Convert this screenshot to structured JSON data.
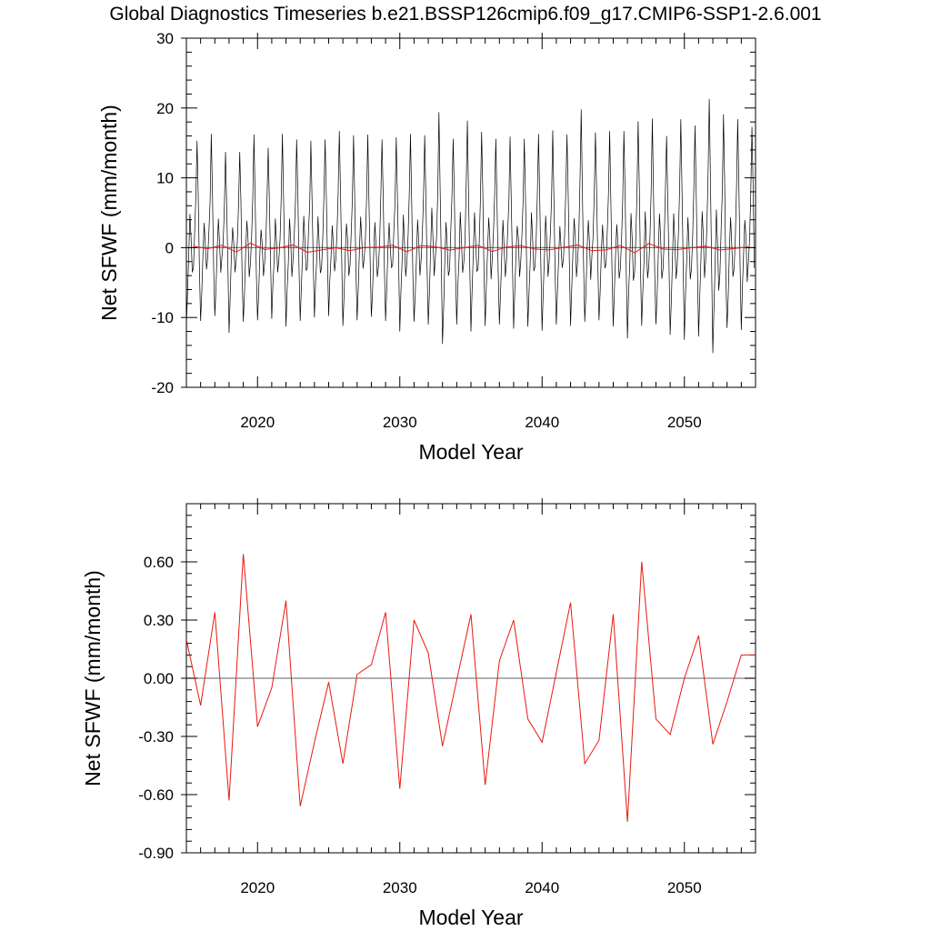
{
  "title": "Global Diagnostics Timeseries b.e21.BSSP126cmip6.f09_g17.CMIP6-SSP1-2.6.001",
  "colors": {
    "monthly": "#000000",
    "annual": "#e8190f",
    "zero_line": "#808080",
    "frame": "#000000"
  },
  "chart_data": [
    {
      "type": "line",
      "xlabel": "Model Year",
      "ylabel": "Net SFWF (mm/month)",
      "xlim": [
        2015,
        2055
      ],
      "ylim": [
        -20,
        30
      ],
      "xticks": [
        2020,
        2030,
        2040,
        2050
      ],
      "xtick_labels": [
        "2020",
        "2030",
        "2040",
        "2050"
      ],
      "yticks": [
        -20,
        -10,
        0,
        10,
        20,
        30
      ],
      "ytick_labels": [
        "-20",
        "-10",
        "0",
        "10",
        "20",
        "30"
      ],
      "reference_line": 0,
      "grid": false,
      "series": [
        {
          "key": "monthly",
          "x_start": 2015.0,
          "x_step": 0.08333,
          "annual_peaks": [
            15.3,
            16.3,
            13.7,
            13.7,
            16.2,
            14.3,
            16.3,
            15.5,
            15.3,
            15.5,
            16.7,
            16.1,
            16.2,
            15.5,
            15.8,
            16.3,
            16.1,
            19.4,
            15.6,
            18.2,
            16.6,
            15.6,
            15.9,
            15.6,
            16.3,
            16.8,
            16.2,
            19.8,
            16.5,
            16.7,
            16.7,
            18.1,
            18.5,
            16.0,
            18.4,
            17.5,
            21.3,
            19.1,
            18.4,
            17.3
          ],
          "annual_troughs": [
            -11.1,
            -10.5,
            -9.8,
            -12.2,
            -10.6,
            -10.4,
            -10.2,
            -11.3,
            -10.5,
            -10.0,
            -9.8,
            -11.2,
            -10.4,
            -9.9,
            -10.5,
            -12.0,
            -10.6,
            -11.0,
            -13.8,
            -11.0,
            -12.0,
            -11.2,
            -11.0,
            -11.6,
            -11.3,
            -11.9,
            -11.0,
            -11.2,
            -10.6,
            -10.4,
            -11.3,
            -13.0,
            -11.2,
            -11.0,
            -12.5,
            -13.2,
            -12.7,
            -15.1,
            -11.5,
            -11.8
          ]
        },
        {
          "key": "annual",
          "x": [
            2015.5,
            2016.5,
            2017.5,
            2018.5,
            2019.5,
            2020.5,
            2021.5,
            2022.5,
            2023.5,
            2024.5,
            2025.5,
            2026.5,
            2027.5,
            2028.5,
            2029.5,
            2030.5,
            2031.5,
            2032.5,
            2033.5,
            2034.5,
            2035.5,
            2036.5,
            2037.5,
            2038.5,
            2039.5,
            2040.5,
            2041.5,
            2042.5,
            2043.5,
            2044.5,
            2045.5,
            2046.5,
            2047.5,
            2048.5,
            2049.5,
            2050.5,
            2051.5,
            2052.5,
            2053.5,
            2054.5
          ],
          "values": [
            0.2,
            -0.14,
            0.34,
            -0.63,
            0.64,
            -0.25,
            -0.05,
            0.4,
            -0.66,
            -0.33,
            -0.02,
            -0.44,
            0.02,
            0.07,
            0.34,
            -0.57,
            0.3,
            0.13,
            -0.35,
            -0.01,
            0.33,
            -0.55,
            0.09,
            0.3,
            -0.21,
            -0.33,
            0.03,
            0.39,
            -0.44,
            -0.32,
            0.33,
            -0.74,
            0.6,
            -0.21,
            -0.29,
            0.0,
            0.22,
            -0.34,
            -0.12,
            0.12
          ]
        }
      ]
    },
    {
      "type": "line",
      "xlabel": "Model Year",
      "ylabel": "Net SFWF (mm/month)",
      "xlim": [
        2015,
        2055
      ],
      "ylim": [
        -0.9,
        0.9
      ],
      "xticks": [
        2020,
        2030,
        2040,
        2050
      ],
      "xtick_labels": [
        "2020",
        "2030",
        "2040",
        "2050"
      ],
      "yticks": [
        -0.9,
        -0.6,
        -0.3,
        0.0,
        0.3,
        0.6
      ],
      "ytick_labels": [
        "-0.90",
        "-0.60",
        "-0.30",
        "0.00",
        "0.30",
        "0.60"
      ],
      "reference_line": 0,
      "grid": false,
      "series": [
        {
          "key": "annual",
          "x": [
            2015.0,
            2016.0,
            2017.0,
            2018.0,
            2019.0,
            2020.0,
            2021.0,
            2022.0,
            2023.0,
            2024.0,
            2025.0,
            2026.0,
            2027.0,
            2028.0,
            2029.0,
            2030.0,
            2031.0,
            2032.0,
            2033.0,
            2034.0,
            2035.0,
            2036.0,
            2037.0,
            2038.0,
            2039.0,
            2040.0,
            2041.0,
            2042.0,
            2043.0,
            2044.0,
            2045.0,
            2046.0,
            2047.0,
            2048.0,
            2049.0,
            2050.0,
            2051.0,
            2052.0,
            2053.0,
            2054.0,
            2055.0
          ],
          "values": [
            0.2,
            -0.14,
            0.34,
            -0.63,
            0.64,
            -0.25,
            -0.05,
            0.4,
            -0.66,
            -0.33,
            -0.02,
            -0.44,
            0.02,
            0.07,
            0.34,
            -0.57,
            0.3,
            0.13,
            -0.35,
            -0.01,
            0.33,
            -0.55,
            0.09,
            0.3,
            -0.21,
            -0.33,
            0.03,
            0.39,
            -0.44,
            -0.32,
            0.33,
            -0.74,
            0.6,
            -0.21,
            -0.29,
            0.0,
            0.22,
            -0.34,
            -0.12,
            0.12,
            0.12
          ]
        }
      ]
    }
  ]
}
